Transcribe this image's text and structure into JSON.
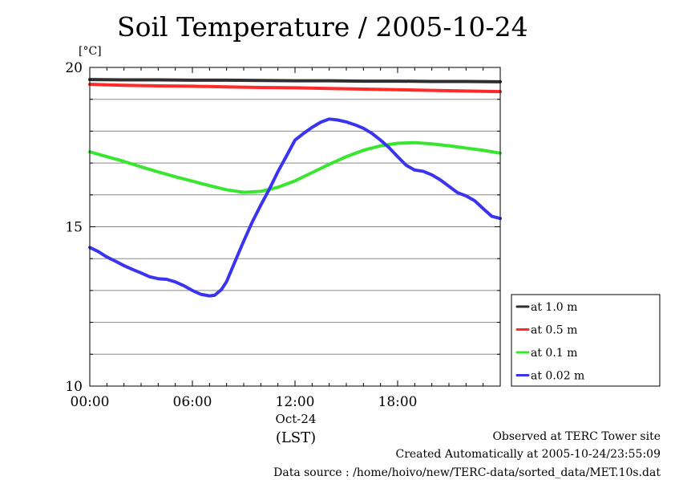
{
  "page": {
    "title": "Soil Temperature / 2005-10-24",
    "unit_label": "[°C]",
    "footer": {
      "line1": "Observed at TERC Tower site",
      "line2": "Created Automatically at 2005-10-24/23:55:09",
      "line3": "Data source : /home/hoivo/new/TERC-data/sorted_data/MET.10s.dat"
    }
  },
  "colors": {
    "background": "#ffffff",
    "axis": "#000000",
    "grid": "#888888",
    "at_1_0_m": "#2f2f2f",
    "at_0_5_m": "#ff2b2b",
    "at_0_1_m": "#39e62f",
    "at_0_02_m": "#3a33f0"
  },
  "chart_data": {
    "type": "line",
    "title": "Soil Temperature / 2005-10-24",
    "xlabel": "Oct-24",
    "xsublabel": "(LST)",
    "ylabel": "[°C]",
    "xlim": [
      0,
      24
    ],
    "ylim": [
      10,
      20
    ],
    "x_ticks": [
      {
        "value": 0,
        "label": "00:00"
      },
      {
        "value": 6,
        "label": "06:00"
      },
      {
        "value": 12,
        "label": "12:00"
      },
      {
        "value": 18,
        "label": "18:00"
      }
    ],
    "y_ticks": [
      {
        "value": 10,
        "label": "10"
      },
      {
        "value": 15,
        "label": "15"
      },
      {
        "value": 20,
        "label": "20"
      }
    ],
    "y_grid_values": [
      11,
      12,
      13,
      14,
      15,
      16,
      17,
      18,
      19,
      20
    ],
    "grid": true,
    "legend_position": "right-bottom",
    "series": [
      {
        "name": "at 1.0 m",
        "color": "#2f2f2f",
        "points": [
          [
            0,
            19.62
          ],
          [
            2,
            19.61
          ],
          [
            4,
            19.61
          ],
          [
            6,
            19.6
          ],
          [
            8,
            19.6
          ],
          [
            10,
            19.59
          ],
          [
            12,
            19.58
          ],
          [
            14,
            19.58
          ],
          [
            16,
            19.57
          ],
          [
            18,
            19.57
          ],
          [
            20,
            19.56
          ],
          [
            22,
            19.56
          ],
          [
            24,
            19.55
          ]
        ]
      },
      {
        "name": "at 0.5 m",
        "color": "#ff2b2b",
        "points": [
          [
            0,
            19.47
          ],
          [
            2,
            19.44
          ],
          [
            4,
            19.42
          ],
          [
            6,
            19.41
          ],
          [
            8,
            19.39
          ],
          [
            10,
            19.37
          ],
          [
            12,
            19.36
          ],
          [
            14,
            19.34
          ],
          [
            16,
            19.32
          ],
          [
            18,
            19.3
          ],
          [
            20,
            19.28
          ],
          [
            22,
            19.26
          ],
          [
            24,
            19.24
          ]
        ]
      },
      {
        "name": "at 0.1 m",
        "color": "#39e62f",
        "points": [
          [
            0,
            17.35
          ],
          [
            1,
            17.2
          ],
          [
            2,
            17.05
          ],
          [
            3,
            16.88
          ],
          [
            4,
            16.72
          ],
          [
            5,
            16.57
          ],
          [
            6,
            16.43
          ],
          [
            7,
            16.29
          ],
          [
            8,
            16.16
          ],
          [
            9,
            16.08
          ],
          [
            10,
            16.11
          ],
          [
            11,
            16.24
          ],
          [
            12,
            16.44
          ],
          [
            13,
            16.7
          ],
          [
            14,
            16.96
          ],
          [
            15,
            17.2
          ],
          [
            16,
            17.4
          ],
          [
            17,
            17.54
          ],
          [
            18,
            17.62
          ],
          [
            19,
            17.64
          ],
          [
            20,
            17.6
          ],
          [
            21,
            17.54
          ],
          [
            22,
            17.47
          ],
          [
            23,
            17.4
          ],
          [
            24,
            17.31
          ]
        ]
      },
      {
        "name": "at 0.02 m",
        "color": "#3a33f0",
        "points": [
          [
            0,
            14.35
          ],
          [
            0.5,
            14.22
          ],
          [
            1,
            14.05
          ],
          [
            1.5,
            13.92
          ],
          [
            2,
            13.78
          ],
          [
            2.5,
            13.66
          ],
          [
            3,
            13.55
          ],
          [
            3.5,
            13.43
          ],
          [
            4,
            13.37
          ],
          [
            4.5,
            13.35
          ],
          [
            5,
            13.27
          ],
          [
            5.5,
            13.15
          ],
          [
            6,
            13.0
          ],
          [
            6.5,
            12.88
          ],
          [
            7,
            12.83
          ],
          [
            7.3,
            12.85
          ],
          [
            7.7,
            13.03
          ],
          [
            8,
            13.28
          ],
          [
            8.5,
            13.92
          ],
          [
            9,
            14.55
          ],
          [
            9.5,
            15.15
          ],
          [
            10,
            15.68
          ],
          [
            10.5,
            16.18
          ],
          [
            11,
            16.73
          ],
          [
            11.5,
            17.22
          ],
          [
            12,
            17.72
          ],
          [
            12.5,
            17.93
          ],
          [
            13,
            18.12
          ],
          [
            13.5,
            18.28
          ],
          [
            14,
            18.38
          ],
          [
            14.5,
            18.35
          ],
          [
            15,
            18.29
          ],
          [
            15.5,
            18.2
          ],
          [
            16,
            18.09
          ],
          [
            16.5,
            17.93
          ],
          [
            17,
            17.72
          ],
          [
            17.5,
            17.48
          ],
          [
            18,
            17.2
          ],
          [
            18.5,
            16.93
          ],
          [
            19,
            16.78
          ],
          [
            19.5,
            16.74
          ],
          [
            20,
            16.63
          ],
          [
            20.5,
            16.47
          ],
          [
            21,
            16.27
          ],
          [
            21.5,
            16.07
          ],
          [
            22,
            15.97
          ],
          [
            22.5,
            15.82
          ],
          [
            23,
            15.57
          ],
          [
            23.5,
            15.33
          ],
          [
            24,
            15.26
          ]
        ]
      }
    ]
  }
}
